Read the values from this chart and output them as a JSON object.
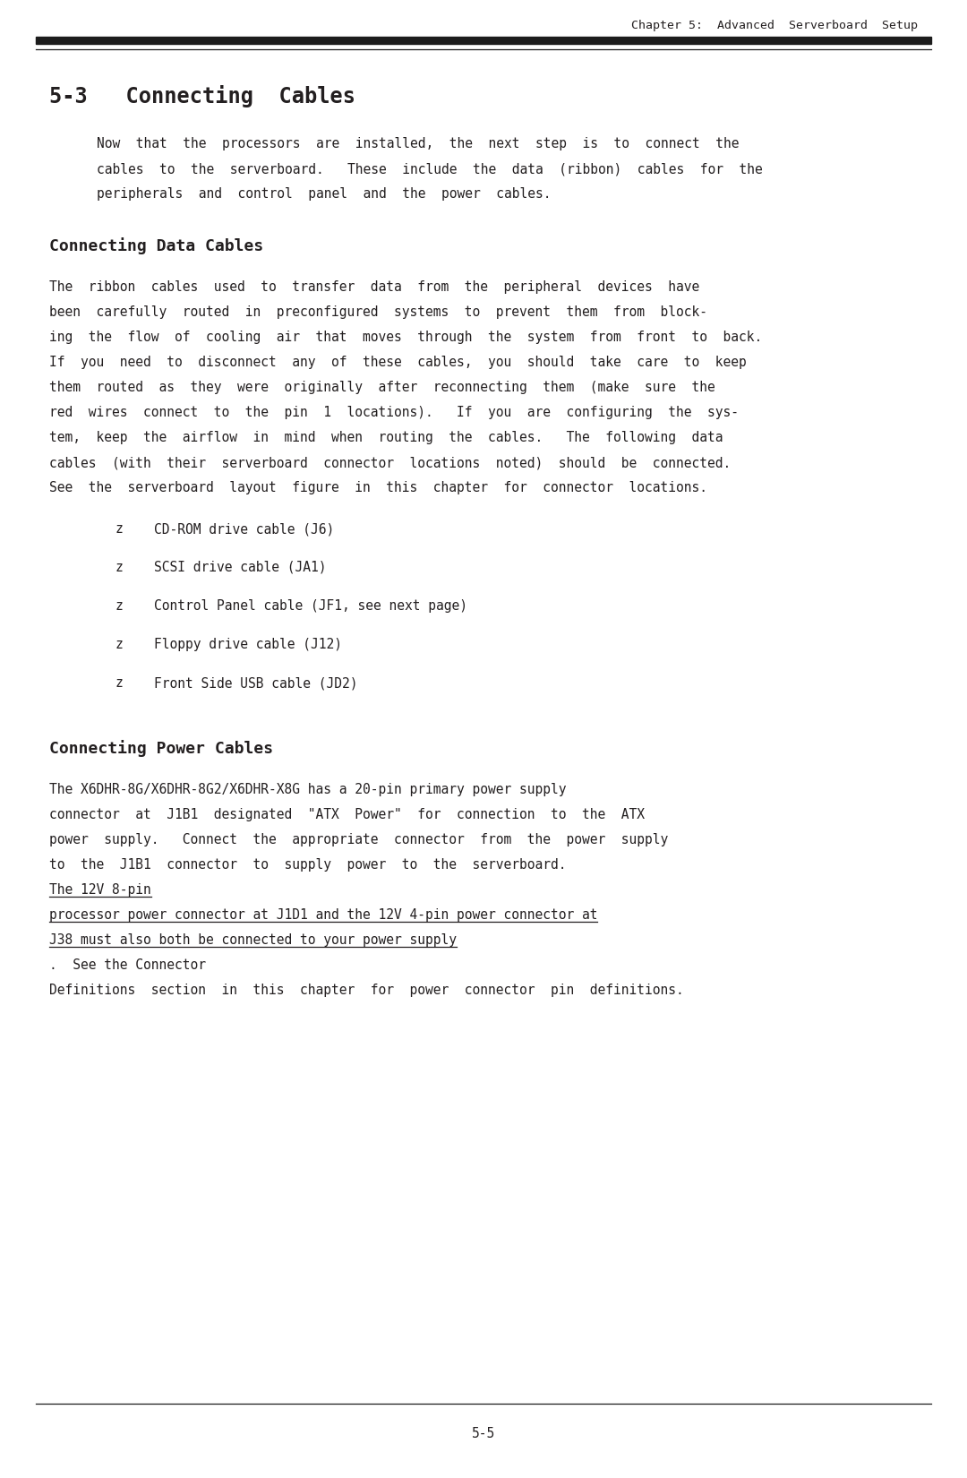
{
  "bg_color": "#ffffff",
  "text_color": "#231f20",
  "header_text": "Chapter 5:  Advanced  Serverboard  Setup",
  "section_title": "5-3   Connecting  Cables",
  "subsection1_title": "Connecting Data Cables",
  "subsection2_title": "Connecting Power Cables",
  "page_number": "5-5",
  "intro_lines": [
    "Now  that  the  processors  are  installed,  the  next  step  is  to  connect  the",
    "cables  to  the  serverboard.   These  include  the  data  (ribbon)  cables  for  the",
    "peripherals  and  control  panel  and  the  power  cables."
  ],
  "data_cable_lines": [
    "The  ribbon  cables  used  to  transfer  data  from  the  peripheral  devices  have",
    "been  carefully  routed  in  preconfigured  systems  to  prevent  them  from  block-",
    "ing  the  flow  of  cooling  air  that  moves  through  the  system  from  front  to  back.",
    "If  you  need  to  disconnect  any  of  these  cables,  you  should  take  care  to  keep",
    "them  routed  as  they  were  originally  after  reconnecting  them  (make  sure  the",
    "red  wires  connect  to  the  pin  1  locations).   If  you  are  configuring  the  sys-",
    "tem,  keep  the  airflow  in  mind  when  routing  the  cables.   The  following  data",
    "cables  (with  their  serverboard  connector  locations  noted)  should  be  connected.",
    "See  the  serverboard  layout  figure  in  this  chapter  for  connector  locations."
  ],
  "bullet_items": [
    "CD-ROM drive cable (J6)",
    "SCSI drive cable (JA1)",
    "Control Panel cable (JF1, see next page)",
    "Floppy drive cable (J12)",
    "Front Side USB cable (JD2)"
  ],
  "power_lines_normal": [
    "The X6DHR-8G/X6DHR-8G2/X6DHR-X8G has a 20-pin primary power supply",
    "connector  at  J1B1  designated  \"ATX  Power\"  for  connection  to  the  ATX",
    "power  supply.   Connect  the  appropriate  connector  from  the  power  supply",
    "to  the  J1B1  connector  to  supply  power  to  the  serverboard.  "
  ],
  "power_underline_lines": [
    "The 12V 8-pin",
    "processor power connector at J1D1 and the 12V 4-pin power connector at",
    "J38 must also both be connected to your power supply"
  ],
  "power_end_lines": [
    ".  See the Connector",
    "Definitions  section  in  this  chapter  for  power  connector  pin  definitions."
  ]
}
